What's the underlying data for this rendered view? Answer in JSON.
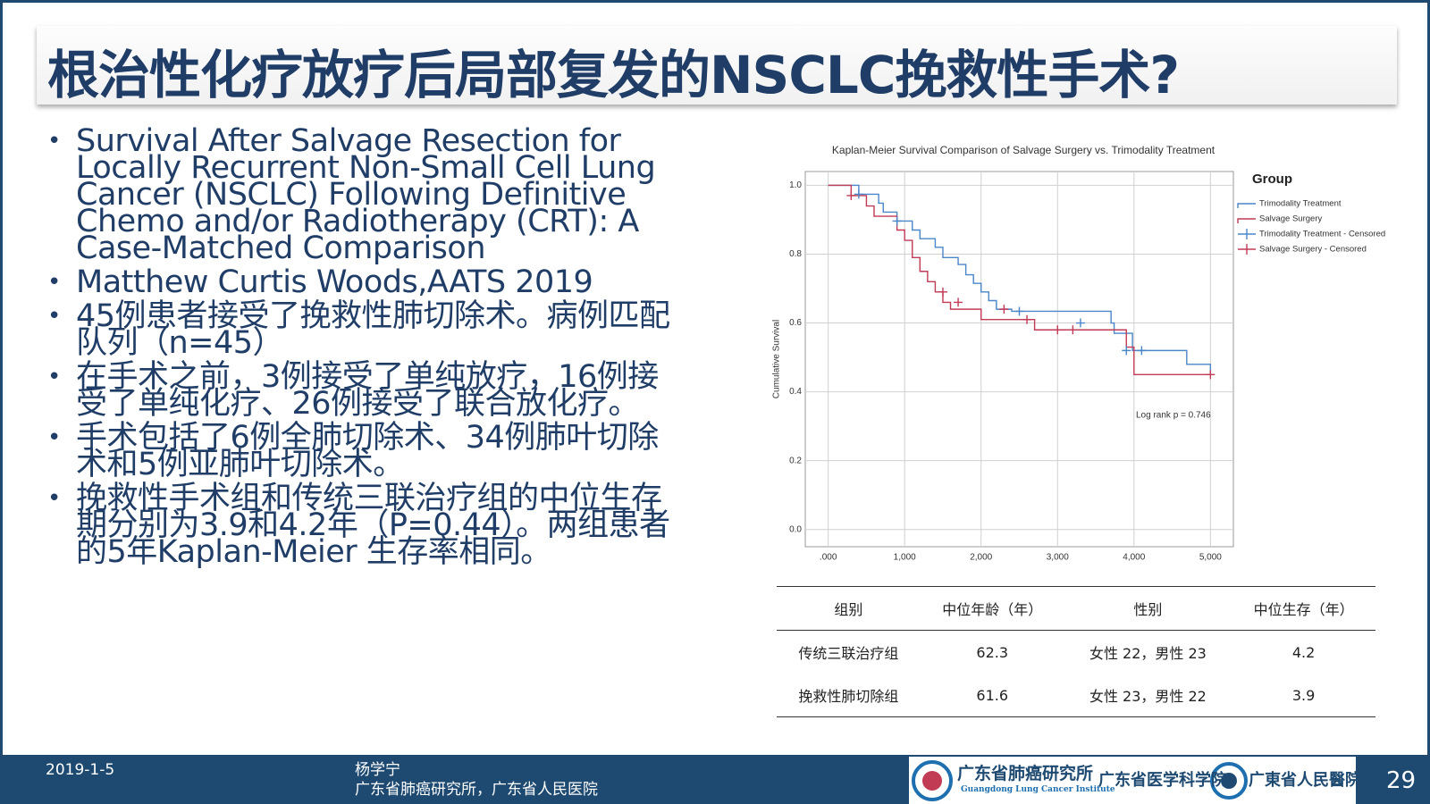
{
  "title": "根治性化疗放疗后局部复发的NSCLC挽救性手术?",
  "bullets": [
    "Survival After Salvage Resection for Locally Recurrent Non-Small Cell Lung Cancer (NSCLC) Following Definitive Chemo and/or Radiotherapy (CRT): A Case-Matched Comparison",
    "Matthew Curtis Woods,AATS 2019",
    "45例患者接受了挽救性肺切除术。病例匹配队列（n=45）",
    "在手术之前，3例接受了单纯放疗，16例接受了单纯化疗、26例接受了联合放化疗。",
    "手术包括了6例全肺切除术、34例肺叶切除术和5例亚肺叶切除术。",
    "挽救性手术组和传统三联治疗组的中位生存期分别为3.9和4.2年（P=0.44）。两组患者的5年Kaplan-Meier 生存率相同。"
  ],
  "chart_data": {
    "type": "line",
    "title": "Kaplan-Meier Survival Comparison of Salvage Surgery vs. Trimodality Treatment",
    "ylabel": "Cumulative Survival",
    "legend_title": "Group",
    "annotation": "Log rank p = 0.746",
    "xlim": [
      -300,
      5300
    ],
    "ylim": [
      -0.05,
      1.04
    ],
    "xticks": [
      {
        "value": 0,
        "label": ".000"
      },
      {
        "value": 1000,
        "label": "1,000"
      },
      {
        "value": 2000,
        "label": "2,000"
      },
      {
        "value": 3000,
        "label": "3,000"
      },
      {
        "value": 4000,
        "label": "4,000"
      },
      {
        "value": 5000,
        "label": "5,000"
      }
    ],
    "yticks": [
      {
        "value": 0,
        "label": "0.0"
      },
      0.2,
      0.4,
      0.6,
      0.8,
      {
        "value": 1,
        "label": "1.0"
      }
    ],
    "grid": true,
    "series": [
      {
        "name": "Trimodality Treatment",
        "color": "#4a86c8",
        "style": "step",
        "x": [
          0,
          400,
          660,
          720,
          900,
          1100,
          1200,
          1400,
          1500,
          1700,
          1800,
          1900,
          2000,
          2100,
          2200,
          2400,
          3700,
          3740,
          3980,
          4690,
          5000
        ],
        "values": [
          1.0,
          0.974,
          0.948,
          0.922,
          0.896,
          0.87,
          0.845,
          0.82,
          0.79,
          0.77,
          0.74,
          0.715,
          0.69,
          0.665,
          0.64,
          0.634,
          0.6,
          0.57,
          0.52,
          0.48,
          0.45
        ]
      },
      {
        "name": "Salvage Surgery",
        "color": "#c23b55",
        "style": "step",
        "x": [
          0,
          300,
          500,
          600,
          900,
          1000,
          1100,
          1200,
          1300,
          1400,
          1500,
          1600,
          2000,
          2700,
          3900,
          4000,
          5000
        ],
        "values": [
          1.0,
          0.97,
          0.94,
          0.91,
          0.87,
          0.84,
          0.79,
          0.75,
          0.72,
          0.69,
          0.66,
          0.64,
          0.61,
          0.58,
          0.53,
          0.45,
          0.45
        ]
      },
      {
        "name": "Trimodality Treatment - Censored",
        "color": "#4a86c8",
        "style": "censor",
        "x": [
          400,
          900,
          2500,
          3300,
          3900,
          4100
        ],
        "values": [
          0.974,
          0.896,
          0.634,
          0.6,
          0.52,
          0.52
        ]
      },
      {
        "name": "Salvage Surgery - Censored",
        "color": "#c23b55",
        "style": "censor",
        "x": [
          300,
          1500,
          1700,
          2300,
          2600,
          3000,
          3200,
          5000
        ],
        "values": [
          0.97,
          0.69,
          0.66,
          0.64,
          0.61,
          0.58,
          0.58,
          0.45
        ]
      }
    ]
  },
  "table": {
    "header": [
      "组别",
      "中位年龄（年）",
      "性别",
      "中位生存（年）"
    ],
    "rows": [
      [
        "传统三联治疗组",
        "62.3",
        "女性 22，男性 23",
        "4.2"
      ],
      [
        "挽救性肺切除组",
        "61.6",
        "女性 23，男性 22",
        "3.9"
      ]
    ]
  },
  "footer": {
    "date": "2019-1-5",
    "author": "杨学宁",
    "affiliation": "广东省肺癌研究所，广东省人民医院",
    "page": 29,
    "logos": [
      "广东省肺癌研究所",
      "Guangdong Lung Cancer Institute",
      "广东省医学科学院",
      "广東省人民醫院"
    ]
  }
}
